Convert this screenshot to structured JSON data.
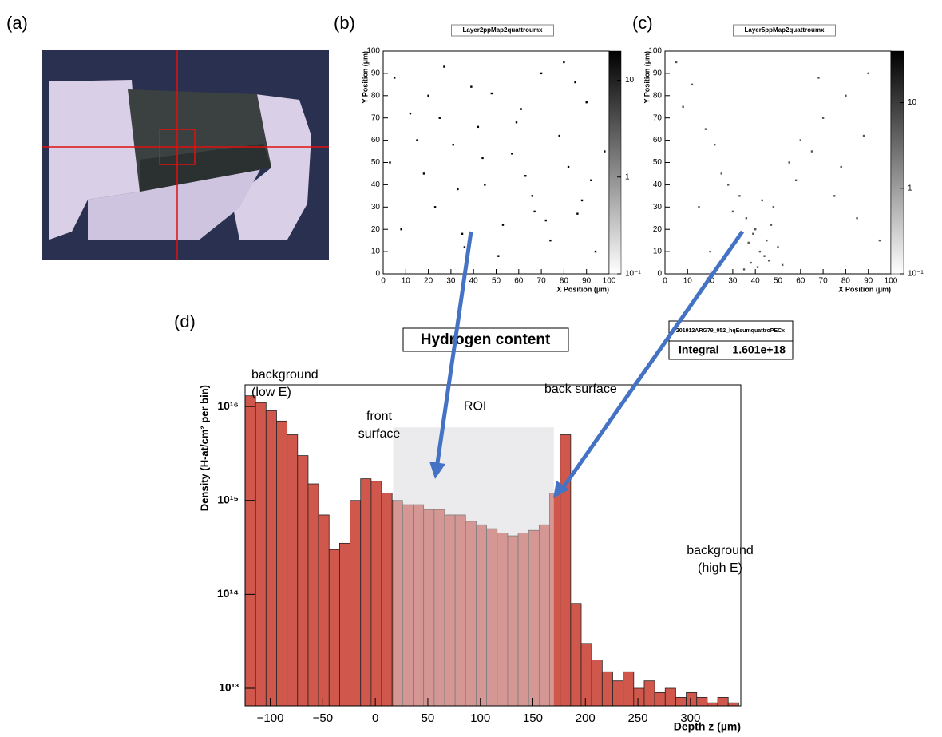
{
  "panels": [
    "(a)",
    "(b)",
    "(c)",
    "(d)"
  ],
  "chart_data": [
    {
      "type": "scatter",
      "title": "Layer2ppMap2quattroumx",
      "x_label": "X Position (µm)",
      "y_label": "Y Position (µm)",
      "xlim": [
        0,
        100
      ],
      "ylim": [
        0,
        100
      ],
      "xticks": [
        0,
        10,
        20,
        30,
        40,
        50,
        60,
        70,
        80,
        90,
        100
      ],
      "yticks": [
        0,
        10,
        20,
        30,
        40,
        50,
        60,
        70,
        80,
        90,
        100
      ],
      "zlim": [
        0.1,
        20
      ],
      "zticks": [
        {
          "value": 0.1,
          "label": "10⁻¹"
        },
        1,
        10
      ],
      "color": "#000000",
      "x": [
        5,
        12,
        18,
        23,
        27,
        31,
        36,
        42,
        45,
        48,
        53,
        57,
        61,
        66,
        70,
        74,
        78,
        82,
        86,
        90,
        94,
        98,
        8,
        15,
        25,
        33,
        39,
        51,
        63,
        72,
        80,
        88,
        3,
        20,
        44,
        59,
        67,
        85,
        92,
        35
      ],
      "y": [
        88,
        72,
        45,
        30,
        93,
        58,
        12,
        66,
        40,
        81,
        22,
        54,
        74,
        35,
        90,
        15,
        62,
        48,
        27,
        77,
        10,
        55,
        20,
        60,
        70,
        38,
        84,
        8,
        44,
        24,
        95,
        33,
        50,
        80,
        52,
        68,
        28,
        86,
        42,
        18
      ]
    },
    {
      "type": "scatter",
      "title": "Layer5ppMap2quattroumx",
      "x_label": "X Position (µm)",
      "y_label": "Y Position (µm)",
      "xlim": [
        0,
        100
      ],
      "ylim": [
        0,
        100
      ],
      "xticks": [
        0,
        10,
        20,
        30,
        40,
        50,
        60,
        70,
        80,
        90,
        100
      ],
      "yticks": [
        0,
        10,
        20,
        30,
        40,
        50,
        60,
        70,
        80,
        90,
        100
      ],
      "zlim": [
        0.1,
        40
      ],
      "zticks": [
        {
          "value": 0.1,
          "label": "10⁻¹"
        },
        1,
        10
      ],
      "color": "#555555",
      "x": [
        38,
        42,
        45,
        40,
        36,
        48,
        33,
        44,
        50,
        28,
        41,
        39,
        47,
        30,
        25,
        55,
        60,
        70,
        80,
        90,
        12,
        18,
        65,
        75,
        85,
        95,
        8,
        20,
        52,
        58,
        35,
        43,
        46,
        37,
        22,
        68,
        78,
        88,
        15,
        5
      ],
      "y": [
        5,
        10,
        15,
        20,
        25,
        30,
        35,
        8,
        12,
        40,
        3,
        18,
        22,
        28,
        45,
        50,
        60,
        70,
        80,
        90,
        85,
        65,
        55,
        35,
        25,
        15,
        75,
        10,
        4,
        42,
        2,
        33,
        6,
        14,
        58,
        88,
        48,
        62,
        30,
        95
      ]
    },
    {
      "type": "histogram",
      "title": "Hydrogen content",
      "x_label": "Depth z (µm)",
      "y_label": "Density (H-at/cm² per bin)",
      "stats": {
        "name": "201912ARG79_052_hqEsumquattroPECx",
        "label": "Integral",
        "value": "1.601e+18"
      },
      "log_y": true,
      "color": "#d0574b",
      "xlim": [
        -124,
        348
      ],
      "ylim": [
        6500000000000.0,
        1.7e+16
      ],
      "xticks": [
        {
          "value": -100,
          "label": "−100"
        },
        {
          "value": -50,
          "label": "−50"
        },
        0,
        50,
        100,
        150,
        200,
        250,
        300
      ],
      "yticks": [
        {
          "value": 10000000000000.0,
          "label": "10¹³"
        },
        {
          "value": 100000000000000.0,
          "label": "10¹⁴"
        },
        {
          "value": 1000000000000000.0,
          "label": "10¹⁵"
        },
        {
          "value": 1e+16,
          "label": "10¹⁶"
        }
      ],
      "bins": [
        -124,
        -114,
        -104,
        -94,
        -84,
        -74,
        -64,
        -54,
        -44,
        -34,
        -24,
        -14,
        -4,
        6,
        16,
        26,
        36,
        46,
        56,
        66,
        76,
        86,
        96,
        106,
        116,
        126,
        136,
        146,
        156,
        166,
        176,
        186,
        196,
        206,
        216,
        226,
        236,
        246,
        256,
        266,
        276,
        286,
        296,
        306,
        316,
        326,
        336,
        346
      ],
      "values": [
        1.3e+16,
        1.1e+16,
        9000000000000000.0,
        7000000000000000.0,
        5000000000000000.0,
        3000000000000000.0,
        1500000000000000.0,
        700000000000000.0,
        300000000000000.0,
        350000000000000.0,
        1000000000000000.0,
        1700000000000000.0,
        1600000000000000.0,
        1200000000000000.0,
        1000000000000000.0,
        900000000000000.0,
        900000000000000.0,
        800000000000000.0,
        800000000000000.0,
        700000000000000.0,
        700000000000000.0,
        600000000000000.0,
        550000000000000.0,
        500000000000000.0,
        450000000000000.0,
        420000000000000.0,
        450000000000000.0,
        480000000000000.0,
        550000000000000.0,
        1200000000000000.0,
        5000000000000000.0,
        80000000000000.0,
        30000000000000.0,
        20000000000000.0,
        15000000000000.0,
        12000000000000.0,
        15000000000000.0,
        10000000000000.0,
        12000000000000.0,
        9000000000000.0,
        10000000000000.0,
        8000000000000.0,
        9000000000000.0,
        8000000000000.0,
        7000000000000.0,
        8000000000000.0,
        7000000000000.0
      ],
      "regions": [
        {
          "label": "ROI",
          "x": [
            17,
            170
          ],
          "top": 6000000000000000.0
        }
      ],
      "annotations": [
        {
          "lines": [
            "background",
            "(low E)"
          ]
        },
        {
          "lines": [
            "front",
            "surface"
          ]
        },
        {
          "lines": [
            "back surface"
          ]
        },
        {
          "lines": [
            "background",
            "(high E)"
          ]
        }
      ]
    }
  ]
}
